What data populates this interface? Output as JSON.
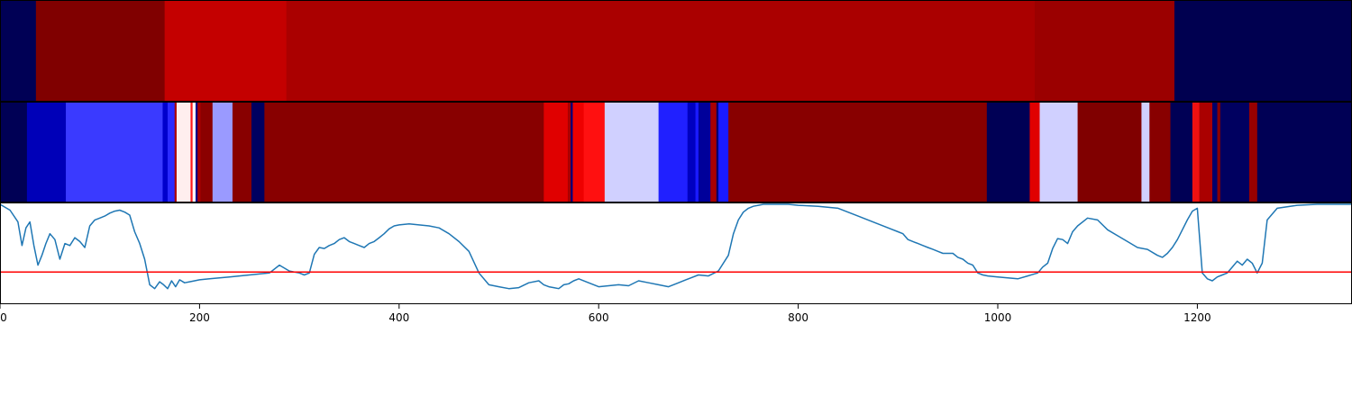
{
  "chart_data": [
    {
      "type": "heatmap",
      "panel": "top-band",
      "x_range": [
        0,
        1355
      ],
      "segments": [
        {
          "x0": 0,
          "x1": 36,
          "color": "#000055"
        },
        {
          "x0": 36,
          "x1": 165,
          "color": "#800000"
        },
        {
          "x0": 165,
          "x1": 287,
          "color": "#c40000"
        },
        {
          "x0": 287,
          "x1": 1037,
          "color": "#aa0000"
        },
        {
          "x0": 1037,
          "x1": 1177,
          "color": "#9b0000"
        },
        {
          "x0": 1177,
          "x1": 1355,
          "color": "#000050"
        }
      ]
    },
    {
      "type": "heatmap",
      "panel": "middle-band",
      "x_range": [
        0,
        1355
      ],
      "segments": [
        {
          "x0": 0,
          "x1": 27,
          "color": "#000055"
        },
        {
          "x0": 27,
          "x1": 66,
          "color": "#0000b8"
        },
        {
          "x0": 66,
          "x1": 163,
          "color": "#3a3aff"
        },
        {
          "x0": 163,
          "x1": 168,
          "color": "#0000cc"
        },
        {
          "x0": 168,
          "x1": 175,
          "color": "#2a2aff"
        },
        {
          "x0": 175,
          "x1": 177,
          "color": "#aa0000"
        },
        {
          "x0": 177,
          "x1": 191,
          "color": "#ffeeee"
        },
        {
          "x0": 191,
          "x1": 193,
          "color": "#ff1a1a"
        },
        {
          "x0": 193,
          "x1": 196,
          "color": "#ffffff"
        },
        {
          "x0": 196,
          "x1": 198,
          "color": "#000088"
        },
        {
          "x0": 198,
          "x1": 201,
          "color": "#aa0000"
        },
        {
          "x0": 201,
          "x1": 213,
          "color": "#8b0000"
        },
        {
          "x0": 213,
          "x1": 233,
          "color": "#9a9aff"
        },
        {
          "x0": 233,
          "x1": 252,
          "color": "#880000"
        },
        {
          "x0": 252,
          "x1": 265,
          "color": "#000060"
        },
        {
          "x0": 265,
          "x1": 545,
          "color": "#880000"
        },
        {
          "x0": 545,
          "x1": 569,
          "color": "#e00000"
        },
        {
          "x0": 569,
          "x1": 572,
          "color": "#aa0000"
        },
        {
          "x0": 572,
          "x1": 574,
          "color": "#000080"
        },
        {
          "x0": 574,
          "x1": 585,
          "color": "#ee0000"
        },
        {
          "x0": 585,
          "x1": 606,
          "color": "#ff1010"
        },
        {
          "x0": 606,
          "x1": 660,
          "color": "#d0d0ff"
        },
        {
          "x0": 660,
          "x1": 689,
          "color": "#2020ff"
        },
        {
          "x0": 689,
          "x1": 697,
          "color": "#0000c0"
        },
        {
          "x0": 697,
          "x1": 700,
          "color": "#1a1aff"
        },
        {
          "x0": 700,
          "x1": 712,
          "color": "#00009a"
        },
        {
          "x0": 712,
          "x1": 718,
          "color": "#aa0000"
        },
        {
          "x0": 718,
          "x1": 720,
          "color": "#000070"
        },
        {
          "x0": 720,
          "x1": 730,
          "color": "#1a1aff"
        },
        {
          "x0": 730,
          "x1": 989,
          "color": "#880000"
        },
        {
          "x0": 989,
          "x1": 1032,
          "color": "#000055"
        },
        {
          "x0": 1032,
          "x1": 1042,
          "color": "#e00000"
        },
        {
          "x0": 1042,
          "x1": 1080,
          "color": "#d0d0ff"
        },
        {
          "x0": 1080,
          "x1": 1144,
          "color": "#800000"
        },
        {
          "x0": 1144,
          "x1": 1152,
          "color": "#d0d0ff"
        },
        {
          "x0": 1152,
          "x1": 1173,
          "color": "#880000"
        },
        {
          "x0": 1173,
          "x1": 1195,
          "color": "#000055"
        },
        {
          "x0": 1195,
          "x1": 1202,
          "color": "#ee1111"
        },
        {
          "x0": 1202,
          "x1": 1215,
          "color": "#aa0000"
        },
        {
          "x0": 1215,
          "x1": 1220,
          "color": "#00006a"
        },
        {
          "x0": 1220,
          "x1": 1223,
          "color": "#880000"
        },
        {
          "x0": 1223,
          "x1": 1252,
          "color": "#000060"
        },
        {
          "x0": 1252,
          "x1": 1260,
          "color": "#990000"
        },
        {
          "x0": 1260,
          "x1": 1355,
          "color": "#000055"
        }
      ]
    },
    {
      "type": "line",
      "panel": "bottom-line",
      "xlim": [
        0,
        1355
      ],
      "ylim": [
        0,
        1
      ],
      "xticks": [
        0,
        200,
        400,
        600,
        800,
        1000,
        1200
      ],
      "xtick_labels": [
        "0",
        "200",
        "400",
        "600",
        "800",
        "1000",
        "1200"
      ],
      "line_color": "#1f77b4",
      "threshold": {
        "value": 0.31,
        "color": "#ff0000"
      },
      "series": [
        {
          "x": [
            0,
            10,
            18,
            22,
            26,
            30,
            34,
            38,
            42,
            46,
            50,
            55,
            60,
            65,
            70,
            75,
            80,
            85,
            90,
            95,
            100,
            105,
            110,
            115,
            120,
            125,
            130,
            135,
            140,
            145,
            150,
            155,
            160,
            164,
            168,
            172,
            176,
            180,
            185,
            190,
            195,
            200,
            210,
            220,
            230,
            240,
            250,
            260,
            270,
            280,
            290,
            300,
            305,
            310,
            315,
            320,
            325,
            330,
            335,
            340,
            345,
            350,
            355,
            360,
            365,
            370,
            375,
            380,
            385,
            390,
            395,
            400,
            410,
            420,
            430,
            440,
            450,
            460,
            470,
            480,
            490,
            500,
            510,
            520,
            530,
            540,
            545,
            550,
            555,
            560,
            565,
            570,
            575,
            580,
            590,
            600,
            610,
            620,
            630,
            640,
            650,
            660,
            670,
            680,
            690,
            700,
            710,
            720,
            730,
            735,
            740,
            745,
            750,
            755,
            760,
            765,
            770,
            775,
            780,
            790,
            800,
            820,
            840,
            860,
            880,
            900,
            905,
            910,
            915,
            920,
            925,
            930,
            935,
            940,
            945,
            950,
            955,
            960,
            965,
            970,
            975,
            980,
            985,
            990,
            1000,
            1010,
            1020,
            1030,
            1040,
            1045,
            1050,
            1055,
            1060,
            1065,
            1070,
            1075,
            1080,
            1090,
            1100,
            1110,
            1120,
            1130,
            1140,
            1150,
            1160,
            1165,
            1170,
            1175,
            1180,
            1185,
            1190,
            1195,
            1200,
            1205,
            1210,
            1215,
            1220,
            1225,
            1230,
            1235,
            1240,
            1245,
            1250,
            1255,
            1260,
            1265,
            1270,
            1280,
            1300,
            1320,
            1340,
            1355
          ],
          "y": [
            1.0,
            0.94,
            0.82,
            0.58,
            0.76,
            0.82,
            0.58,
            0.38,
            0.48,
            0.6,
            0.7,
            0.64,
            0.44,
            0.6,
            0.58,
            0.66,
            0.62,
            0.56,
            0.78,
            0.84,
            0.86,
            0.88,
            0.91,
            0.93,
            0.94,
            0.92,
            0.89,
            0.72,
            0.6,
            0.44,
            0.18,
            0.14,
            0.21,
            0.18,
            0.14,
            0.22,
            0.16,
            0.23,
            0.2,
            0.21,
            0.22,
            0.23,
            0.24,
            0.25,
            0.26,
            0.27,
            0.28,
            0.29,
            0.3,
            0.38,
            0.32,
            0.3,
            0.28,
            0.3,
            0.49,
            0.56,
            0.55,
            0.58,
            0.6,
            0.64,
            0.66,
            0.62,
            0.6,
            0.58,
            0.56,
            0.6,
            0.62,
            0.66,
            0.7,
            0.75,
            0.78,
            0.79,
            0.8,
            0.79,
            0.78,
            0.76,
            0.7,
            0.62,
            0.52,
            0.3,
            0.18,
            0.16,
            0.14,
            0.15,
            0.2,
            0.22,
            0.18,
            0.16,
            0.15,
            0.14,
            0.18,
            0.19,
            0.22,
            0.24,
            0.2,
            0.16,
            0.17,
            0.18,
            0.17,
            0.22,
            0.2,
            0.18,
            0.16,
            0.2,
            0.24,
            0.28,
            0.27,
            0.32,
            0.48,
            0.7,
            0.84,
            0.92,
            0.96,
            0.98,
            0.99,
            1.0,
            1.0,
            1.0,
            1.0,
            1.0,
            0.99,
            0.98,
            0.96,
            0.88,
            0.8,
            0.72,
            0.7,
            0.64,
            0.62,
            0.6,
            0.58,
            0.56,
            0.54,
            0.52,
            0.5,
            0.5,
            0.5,
            0.46,
            0.44,
            0.4,
            0.38,
            0.3,
            0.28,
            0.27,
            0.26,
            0.25,
            0.24,
            0.27,
            0.3,
            0.36,
            0.4,
            0.55,
            0.65,
            0.64,
            0.6,
            0.72,
            0.78,
            0.86,
            0.84,
            0.74,
            0.68,
            0.62,
            0.56,
            0.54,
            0.48,
            0.46,
            0.5,
            0.56,
            0.64,
            0.74,
            0.84,
            0.93,
            0.96,
            0.3,
            0.24,
            0.22,
            0.26,
            0.28,
            0.3,
            0.36,
            0.42,
            0.38,
            0.44,
            0.4,
            0.3,
            0.4,
            0.84,
            0.96,
            0.99,
            1.0,
            1.0,
            1.0
          ]
        }
      ]
    }
  ]
}
